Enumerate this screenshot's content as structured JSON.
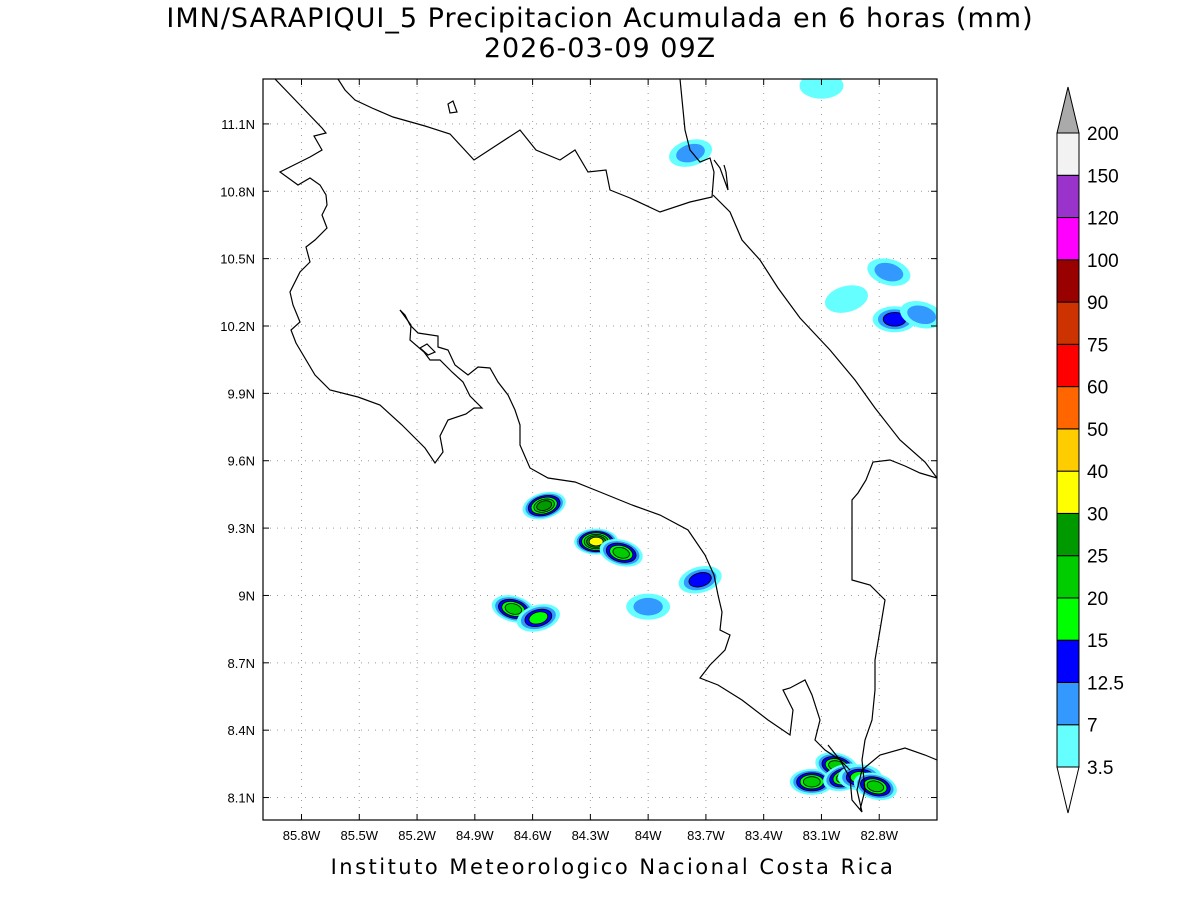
{
  "title": {
    "line1": "IMN/SARAPIQUI_5 Precipitacion Acumulada en 6 horas (mm)",
    "line2": "2026-03-09 09Z"
  },
  "footer": "Instituto Meteorologico Nacional Costa Rica",
  "map": {
    "lon_range": [
      -86.0,
      -82.5
    ],
    "lat_range": [
      8.0,
      11.3
    ],
    "lon_ticks": [
      {
        "value": -85.8,
        "label": "85.8W"
      },
      {
        "value": -85.5,
        "label": "85.5W"
      },
      {
        "value": -85.2,
        "label": "85.2W"
      },
      {
        "value": -84.9,
        "label": "84.9W"
      },
      {
        "value": -84.6,
        "label": "84.6W"
      },
      {
        "value": -84.3,
        "label": "84.3W"
      },
      {
        "value": -84.0,
        "label": "84W"
      },
      {
        "value": -83.7,
        "label": "83.7W"
      },
      {
        "value": -83.4,
        "label": "83.4W"
      },
      {
        "value": -83.1,
        "label": "83.1W"
      },
      {
        "value": -82.8,
        "label": "82.8W"
      }
    ],
    "lat_ticks": [
      {
        "value": 8.1,
        "label": "8.1N"
      },
      {
        "value": 8.4,
        "label": "8.4N"
      },
      {
        "value": 8.7,
        "label": "8.7N"
      },
      {
        "value": 9.0,
        "label": "9N"
      },
      {
        "value": 9.3,
        "label": "9.3N"
      },
      {
        "value": 9.6,
        "label": "9.6N"
      },
      {
        "value": 9.9,
        "label": "9.9N"
      },
      {
        "value": 10.2,
        "label": "10.2N"
      },
      {
        "value": 10.5,
        "label": "10.5N"
      },
      {
        "value": 10.8,
        "label": "10.8N"
      },
      {
        "value": 11.1,
        "label": "11.1N"
      }
    ],
    "grid": true,
    "projection": "latlon"
  },
  "legend": {
    "placement": "right",
    "levels": [
      "3.5",
      "7",
      "12.5",
      "15",
      "20",
      "25",
      "30",
      "40",
      "50",
      "60",
      "75",
      "90",
      "100",
      "120",
      "150",
      "200"
    ],
    "colors": [
      "#ffffff",
      "#66ffff",
      "#3399ff",
      "#0000ff",
      "#00ff00",
      "#00cc00",
      "#009900",
      "#ffff00",
      "#ffcc00",
      "#ff6600",
      "#ff0000",
      "#cc3300",
      "#990000",
      "#ff00ff",
      "#9933cc",
      "#f2f2f2",
      "#aaaaaa"
    ]
  },
  "precipitation_cells": [
    {
      "lon": -83.78,
      "lat": 10.97,
      "peak_mm": 10
    },
    {
      "lon": -83.1,
      "lat": 11.27,
      "peak_mm": 4
    },
    {
      "lon": -82.75,
      "lat": 10.44,
      "peak_mm": 8
    },
    {
      "lon": -82.97,
      "lat": 10.32,
      "peak_mm": 5
    },
    {
      "lon": -82.72,
      "lat": 10.23,
      "peak_mm": 14
    },
    {
      "lon": -82.58,
      "lat": 10.25,
      "peak_mm": 9
    },
    {
      "lon": -84.54,
      "lat": 9.4,
      "peak_mm": 26
    },
    {
      "lon": -84.27,
      "lat": 9.24,
      "peak_mm": 33
    },
    {
      "lon": -84.14,
      "lat": 9.19,
      "peak_mm": 22
    },
    {
      "lon": -83.73,
      "lat": 9.07,
      "peak_mm": 14
    },
    {
      "lon": -84.0,
      "lat": 8.95,
      "peak_mm": 8
    },
    {
      "lon": -84.7,
      "lat": 8.94,
      "peak_mm": 22
    },
    {
      "lon": -84.57,
      "lat": 8.9,
      "peak_mm": 16
    },
    {
      "lon": -83.15,
      "lat": 8.17,
      "peak_mm": 24
    },
    {
      "lon": -83.02,
      "lat": 8.24,
      "peak_mm": 20
    },
    {
      "lon": -82.98,
      "lat": 8.19,
      "peak_mm": 22
    },
    {
      "lon": -82.9,
      "lat": 8.19,
      "peak_mm": 16
    },
    {
      "lon": -82.82,
      "lat": 8.15,
      "peak_mm": 20
    }
  ]
}
